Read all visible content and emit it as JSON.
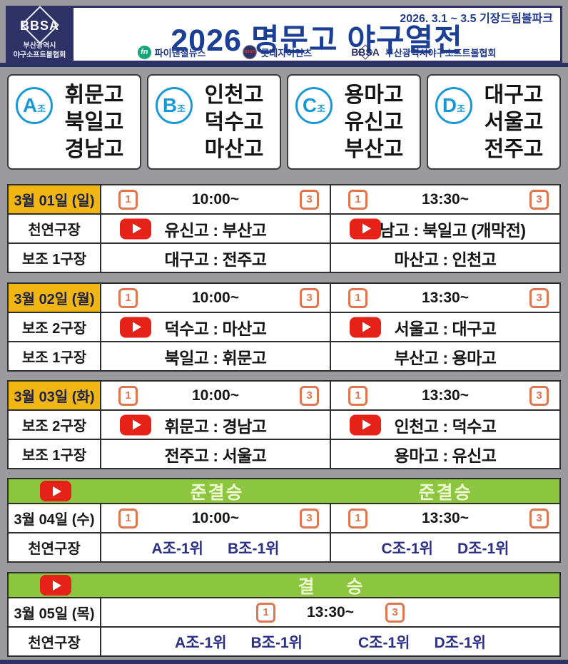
{
  "colors": {
    "navy": "#2d3166",
    "title_navy": "#1c3f96",
    "green": "#8cc63e",
    "yellow": "#f1b612",
    "orange": "#e0764f",
    "circle_blue": "#1899d6",
    "youtube_red": "#e62117"
  },
  "header": {
    "org": {
      "abbr": "BBSA",
      "line1": "부산광역시",
      "line2": "야구소프트볼협회"
    },
    "date_range": "2026. 3.1 ~ 3.5  기장드림볼파크",
    "title": "2026 명문고 야구열전",
    "sponsors": [
      {
        "icon_text": "fn",
        "name": "파이낸셜뉴스"
      },
      {
        "icon_text": "GIANTS",
        "name": "롯데자이언츠"
      },
      {
        "icon_text": "BBSA",
        "name": "부산광역시야구소프트볼협회"
      }
    ]
  },
  "groups": [
    {
      "letter": "A",
      "suffix": "조",
      "teams": [
        "휘문고",
        "북일고",
        "경남고"
      ]
    },
    {
      "letter": "B",
      "suffix": "조",
      "teams": [
        "인천고",
        "덕수고",
        "마산고"
      ]
    },
    {
      "letter": "C",
      "suffix": "조",
      "teams": [
        "용마고",
        "유신고",
        "부산고"
      ]
    },
    {
      "letter": "D",
      "suffix": "조",
      "teams": [
        "대구고",
        "서울고",
        "전주고"
      ]
    }
  ],
  "group_stage": [
    {
      "date": "3월 01일 (일)",
      "sessions": [
        {
          "start_no": "1",
          "time": "10:00~",
          "end_no": "3"
        },
        {
          "start_no": "1",
          "time": "13:30~",
          "end_no": "3"
        }
      ],
      "rows": [
        {
          "venue": "천연구장",
          "matches": [
            {
              "text": "유신고 : 부산고"
            },
            {
              "text": "경남고 : 북일고 (개막전)"
            }
          ]
        },
        {
          "venue": "보조 1구장",
          "matches": [
            {
              "text": "대구고 : 전주고"
            },
            {
              "text": "마산고 : 인천고"
            }
          ]
        }
      ]
    },
    {
      "date": "3월 02일 (월)",
      "sessions": [
        {
          "start_no": "1",
          "time": "10:00~",
          "end_no": "3"
        },
        {
          "start_no": "1",
          "time": "13:30~",
          "end_no": "3"
        }
      ],
      "rows": [
        {
          "venue": "보조 2구장",
          "matches": [
            {
              "text": "덕수고 : 마산고"
            },
            {
              "text": "서울고 : 대구고"
            }
          ]
        },
        {
          "venue": "보조 1구장",
          "matches": [
            {
              "text": "북일고 : 휘문고"
            },
            {
              "text": "부산고 : 용마고"
            }
          ]
        }
      ]
    },
    {
      "date": "3월 03일 (화)",
      "sessions": [
        {
          "start_no": "1",
          "time": "10:00~",
          "end_no": "3"
        },
        {
          "start_no": "1",
          "time": "13:30~",
          "end_no": "3"
        }
      ],
      "rows": [
        {
          "venue": "보조 2구장",
          "matches": [
            {
              "text": "휘문고 : 경남고"
            },
            {
              "text": "인천고 : 덕수고"
            }
          ]
        },
        {
          "venue": "보조 1구장",
          "matches": [
            {
              "text": "전주고 : 서울고"
            },
            {
              "text": "용마고 : 유신고"
            }
          ]
        }
      ]
    }
  ],
  "semifinal": {
    "labels": [
      "준결승",
      "준결승"
    ],
    "date": "3월 04일 (수)",
    "sessions": [
      {
        "start_no": "1",
        "time": "10:00~",
        "end_no": "3"
      },
      {
        "start_no": "1",
        "time": "13:30~",
        "end_no": "3"
      }
    ],
    "venue": "천연구장",
    "pairs": [
      [
        "A조-1위",
        "B조-1위"
      ],
      [
        "C조-1위",
        "D조-1위"
      ]
    ]
  },
  "final": {
    "label": "결 승",
    "date": "3월 05일 (목)",
    "session": {
      "start_no": "1",
      "time": "13:30~",
      "end_no": "3"
    },
    "venue": "천연구장",
    "pairs": [
      [
        "A조-1위",
        "B조-1위"
      ],
      [
        "C조-1위",
        "D조-1위"
      ]
    ]
  }
}
